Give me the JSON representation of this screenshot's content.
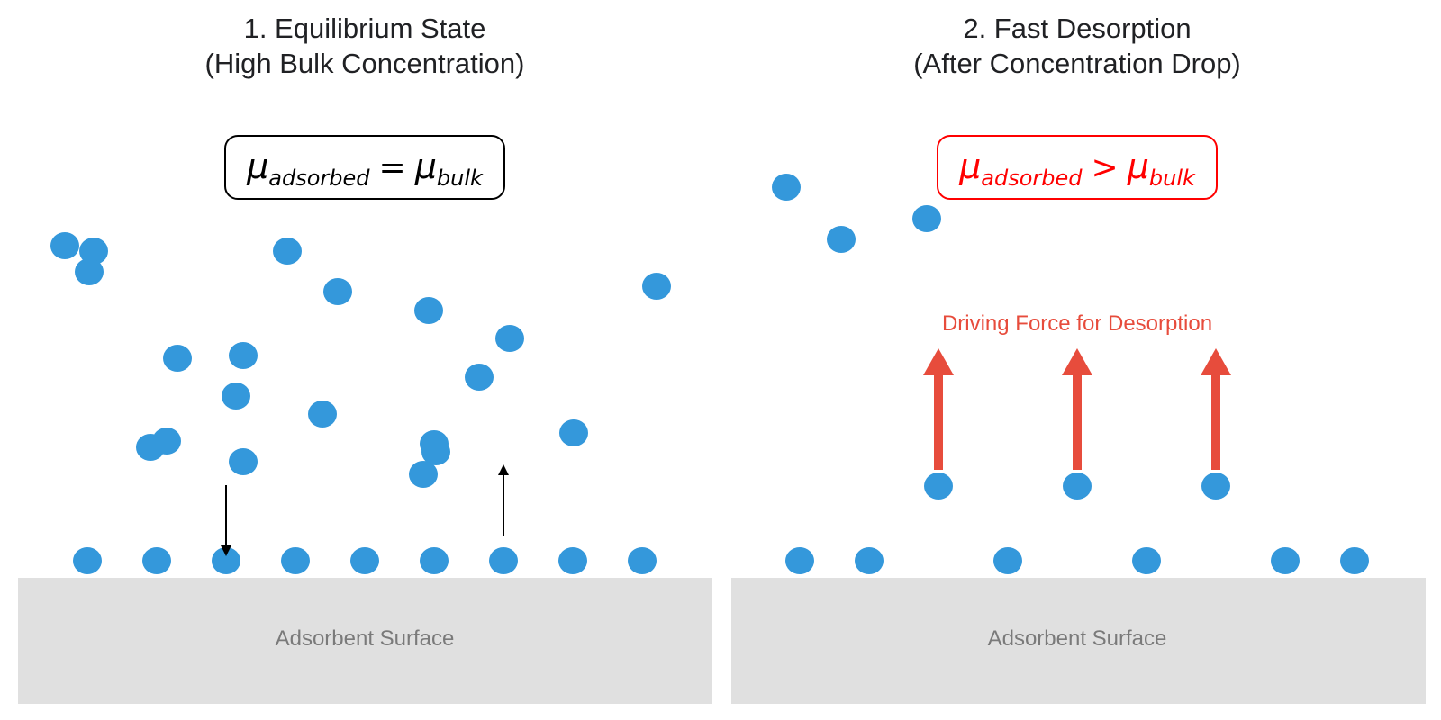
{
  "colors": {
    "molecule": "#3498db",
    "surface": "#e0e0e0",
    "surface_text": "#7a7a7a",
    "title_text": "#202124",
    "highlight_red": "#ff0000",
    "force_arrow": "#e74c3c",
    "flux_arrow": "#000000"
  },
  "panels": [
    {
      "title_line1": "1. Equilibrium State",
      "title_line2": "(High Bulk Concentration)",
      "equation": {
        "mu": "μ",
        "left_sub": "adsorbed",
        "op": "=",
        "right_sub": "bulk",
        "highlight": false
      },
      "surface_label": "Adsorbent Surface",
      "flux_arrows": [
        "adsorption-arrow-down",
        "desorption-arrow-up"
      ]
    },
    {
      "title_line1": "2. Fast Desorption",
      "title_line2": "(After Concentration Drop)",
      "equation": {
        "mu": "μ",
        "left_sub": "adsorbed",
        "op": ">",
        "right_sub": "bulk",
        "highlight": true
      },
      "surface_label": "Adsorbent Surface",
      "force_label": "Driving Force for Desorption",
      "force_arrow_count": 3
    }
  ]
}
